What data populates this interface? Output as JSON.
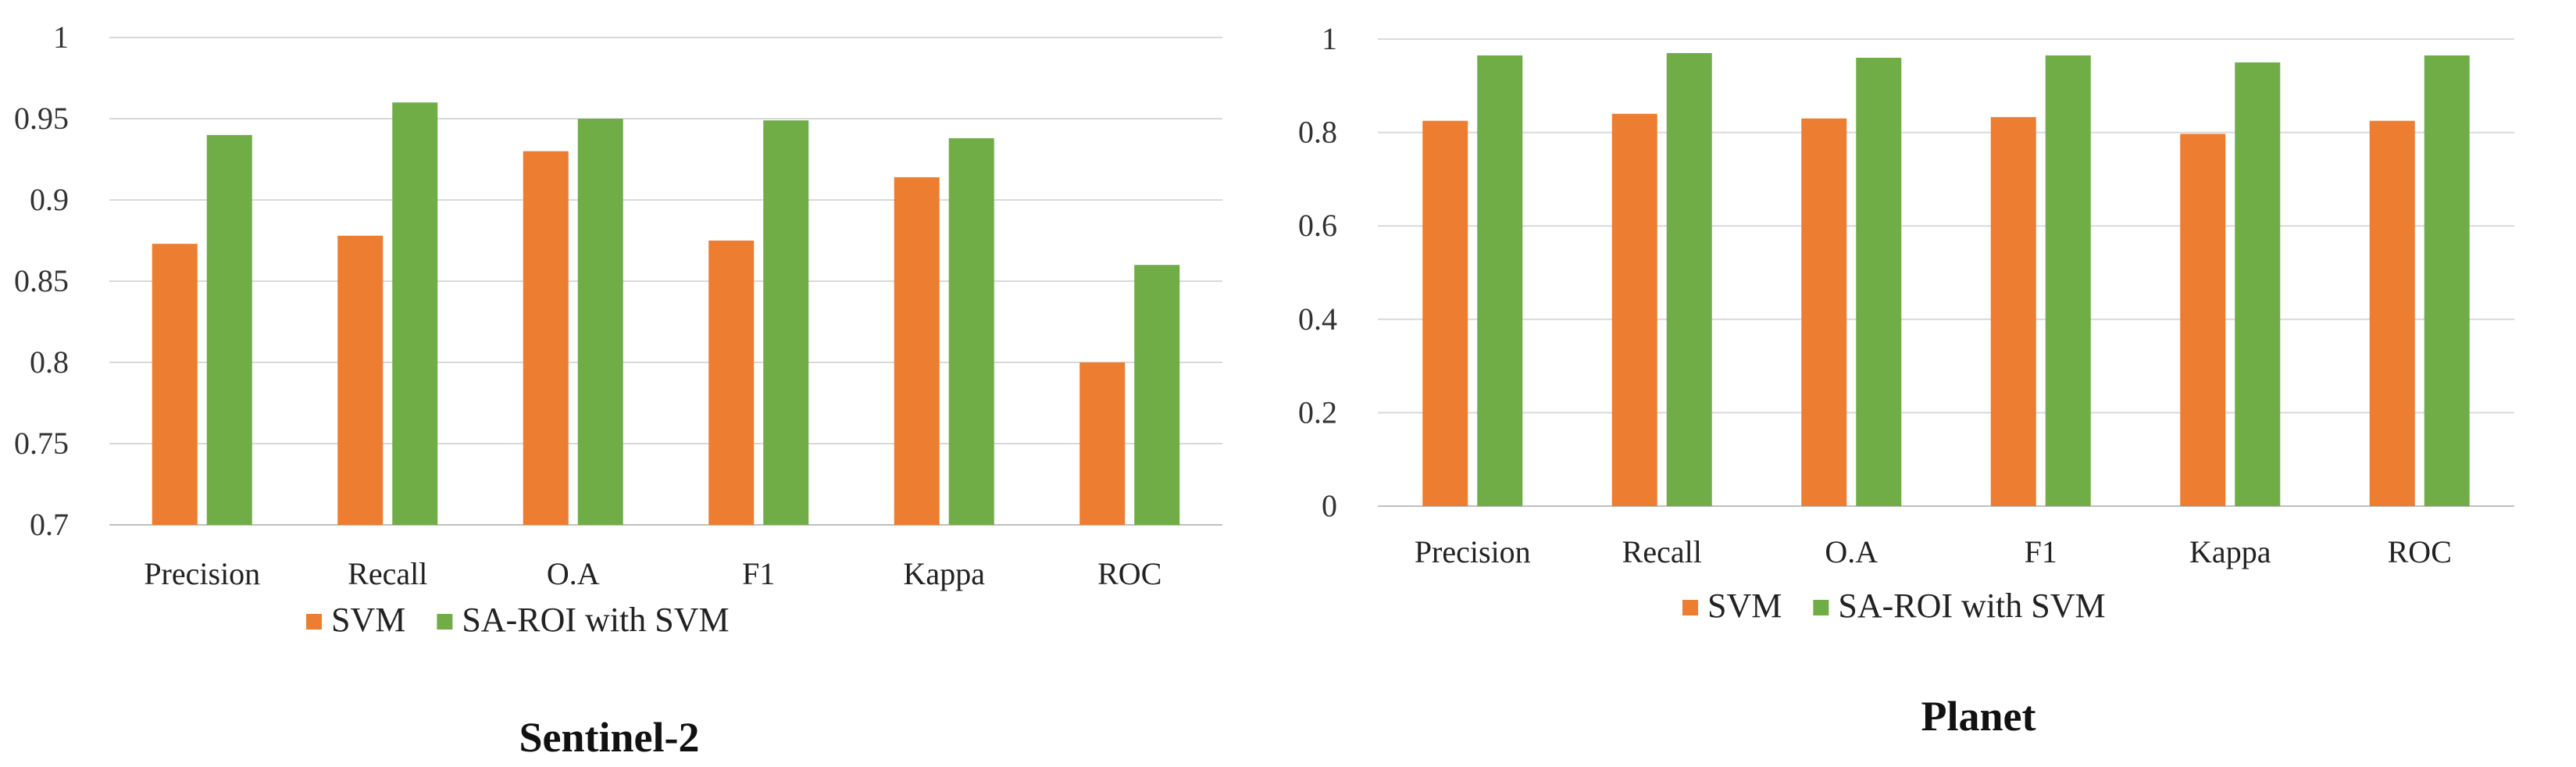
{
  "chart_data": [
    {
      "type": "bar",
      "title": "Sentinel-2",
      "categories": [
        "Precision",
        "Recall",
        "O.A",
        "F1",
        "Kappa",
        "ROC"
      ],
      "series": [
        {
          "name": "SVM",
          "color": "#ED7D31",
          "values": [
            0.873,
            0.878,
            0.93,
            0.875,
            0.914,
            0.8
          ]
        },
        {
          "name": "SA-ROI with SVM",
          "color": "#70AD47",
          "values": [
            0.94,
            0.96,
            0.95,
            0.949,
            0.938,
            0.86
          ]
        }
      ],
      "ylim": [
        0.7,
        1
      ],
      "yticks": [
        0.7,
        0.75,
        0.8,
        0.85,
        0.9,
        0.95,
        1
      ],
      "ytick_labels": [
        "0.7",
        "0.75",
        "0.8",
        "0.85",
        "0.9",
        "0.95",
        "1"
      ],
      "grid": true,
      "xlabel": "",
      "ylabel": "",
      "legend": "bottom"
    },
    {
      "type": "bar",
      "title": "Planet",
      "categories": [
        "Precision",
        "Recall",
        "O.A",
        "F1",
        "Kappa",
        "ROC"
      ],
      "series": [
        {
          "name": "SVM",
          "color": "#ED7D31",
          "values": [
            0.825,
            0.84,
            0.83,
            0.833,
            0.797,
            0.825
          ]
        },
        {
          "name": "SA-ROI with SVM",
          "color": "#70AD47",
          "values": [
            0.965,
            0.97,
            0.96,
            0.965,
            0.95,
            0.965
          ]
        }
      ],
      "ylim": [
        0,
        1
      ],
      "yticks": [
        0,
        0.2,
        0.4,
        0.6,
        0.8,
        1
      ],
      "ytick_labels": [
        "0",
        "0.2",
        "0.4",
        "0.6",
        "0.8",
        "1"
      ],
      "grid": true,
      "xlabel": "",
      "ylabel": "",
      "legend": "bottom"
    }
  ]
}
